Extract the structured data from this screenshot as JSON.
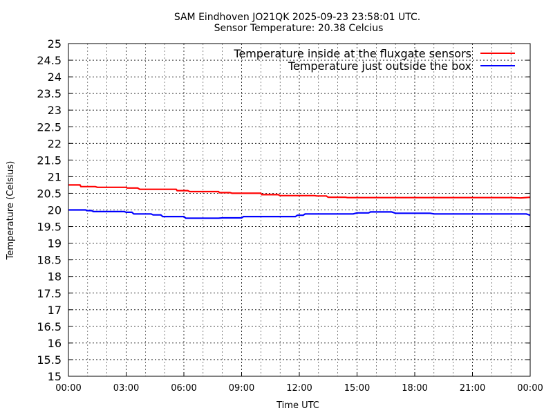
{
  "chart_data": {
    "type": "line",
    "title": "SAM Eindhoven JO21QK 2025-09-23 23:58:01 UTC.",
    "subtitle": "Sensor Temperature: 20.38 Celcius",
    "xlabel": "Time UTC",
    "ylabel": "Temperature (Celsius)",
    "xlim": [
      0,
      24
    ],
    "ylim": [
      15,
      25
    ],
    "grid": true,
    "legend_position": "top-right",
    "x_ticks": [
      {
        "value": 0,
        "label": "00:00"
      },
      {
        "value": 3,
        "label": "03:00"
      },
      {
        "value": 6,
        "label": "06:00"
      },
      {
        "value": 9,
        "label": "09:00"
      },
      {
        "value": 12,
        "label": "12:00"
      },
      {
        "value": 15,
        "label": "15:00"
      },
      {
        "value": 18,
        "label": "18:00"
      },
      {
        "value": 21,
        "label": "21:00"
      },
      {
        "value": 24,
        "label": "00:00"
      }
    ],
    "y_ticks": [
      {
        "value": 15,
        "label": "15"
      },
      {
        "value": 15.5,
        "label": "15.5"
      },
      {
        "value": 16,
        "label": "16"
      },
      {
        "value": 16.5,
        "label": "16.5"
      },
      {
        "value": 17,
        "label": "17"
      },
      {
        "value": 17.5,
        "label": "17.5"
      },
      {
        "value": 18,
        "label": "18"
      },
      {
        "value": 18.5,
        "label": "18.5"
      },
      {
        "value": 19,
        "label": "19"
      },
      {
        "value": 19.5,
        "label": "19.5"
      },
      {
        "value": 20,
        "label": "20"
      },
      {
        "value": 20.5,
        "label": "20.5"
      },
      {
        "value": 21,
        "label": "21"
      },
      {
        "value": 21.5,
        "label": "21.5"
      },
      {
        "value": 22,
        "label": "22"
      },
      {
        "value": 22.5,
        "label": "22.5"
      },
      {
        "value": 23,
        "label": "23"
      },
      {
        "value": 23.5,
        "label": "23.5"
      },
      {
        "value": 24,
        "label": "24"
      },
      {
        "value": 24.5,
        "label": "24.5"
      },
      {
        "value": 25,
        "label": "25"
      }
    ],
    "series": [
      {
        "name": "Temperature inside at the fluxgate sensors",
        "color": "#ff0000",
        "x": [
          0,
          0.6,
          0.65,
          1.4,
          1.5,
          3.0,
          3.05,
          3.6,
          3.7,
          5.6,
          5.65,
          6.2,
          6.3,
          7.8,
          7.85,
          8.4,
          8.5,
          10.0,
          10.05,
          10.9,
          11.0,
          12.8,
          12.9,
          13.4,
          13.5,
          14.4,
          14.5,
          17.5,
          20.0,
          23.0,
          23.5,
          24.0
        ],
        "y": [
          20.75,
          20.75,
          20.7,
          20.7,
          20.68,
          20.68,
          20.66,
          20.66,
          20.62,
          20.62,
          20.58,
          20.58,
          20.55,
          20.55,
          20.52,
          20.52,
          20.5,
          20.5,
          20.46,
          20.46,
          20.43,
          20.43,
          20.42,
          20.42,
          20.38,
          20.38,
          20.37,
          20.37,
          20.37,
          20.37,
          20.36,
          20.38
        ]
      },
      {
        "name": "Temperature just outside the box",
        "color": "#0000ff",
        "x": [
          0,
          0.9,
          0.95,
          1.2,
          1.3,
          2.9,
          3.0,
          3.3,
          3.4,
          4.3,
          4.4,
          4.8,
          4.9,
          6.0,
          6.1,
          7.8,
          8.0,
          9.0,
          9.1,
          11.8,
          11.9,
          12.2,
          12.3,
          14.8,
          15.0,
          15.6,
          15.7,
          16.8,
          17.0,
          18.8,
          19.0,
          23.8,
          24.0
        ],
        "y": [
          20.0,
          20.0,
          19.98,
          19.98,
          19.95,
          19.95,
          19.93,
          19.93,
          19.88,
          19.88,
          19.85,
          19.85,
          19.8,
          19.8,
          19.75,
          19.75,
          19.76,
          19.76,
          19.8,
          19.8,
          19.84,
          19.84,
          19.88,
          19.88,
          19.91,
          19.91,
          19.94,
          19.94,
          19.9,
          19.9,
          19.88,
          19.88,
          19.84
        ]
      }
    ]
  }
}
